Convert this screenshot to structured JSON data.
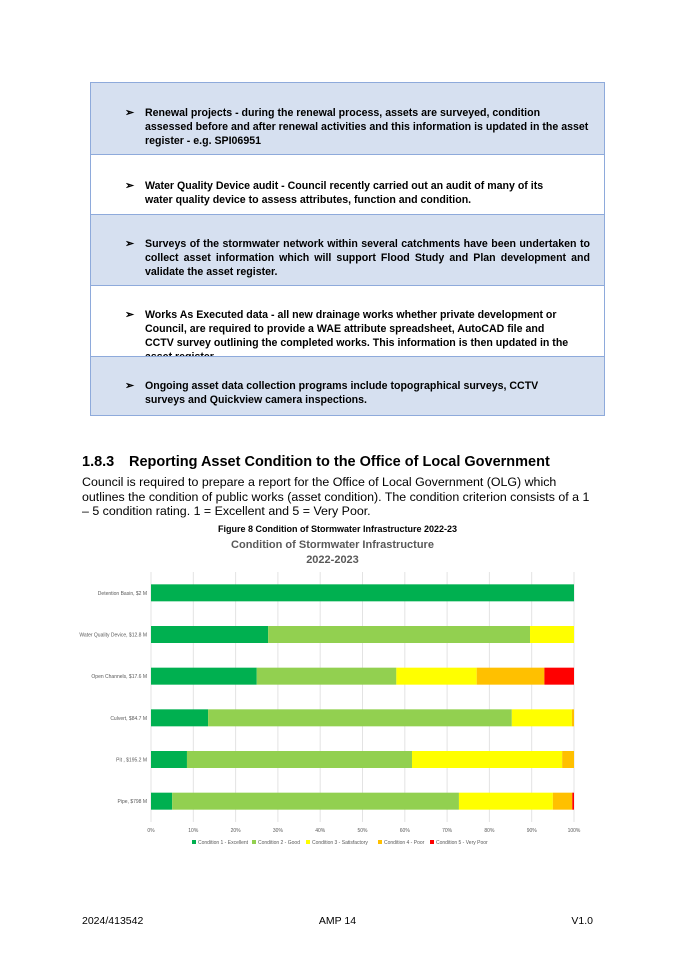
{
  "table": {
    "rows": [
      {
        "bullet": "➢",
        "text": "Renewal projects - during the renewal process, assets are surveyed, condition assessed before and after renewal activities and this information is updated in the asset register - e.g. SPI06951"
      },
      {
        "bullet": "➢",
        "text": "Water Quality Device audit - Council recently carried out an audit of many of its water quality device to assess attributes, function and condition."
      },
      {
        "bullet": "➢",
        "text": "Surveys of the stormwater network within several catchments have been undertaken to collect asset information which will support Flood Study and Plan development and validate the asset register."
      },
      {
        "bullet": "➢",
        "text": "Works As Executed data - all new drainage works whether private development or Council, are required to provide a WAE attribute spreadsheet, AutoCAD file and CCTV survey outlining the completed works. This information is then updated in the asset register."
      },
      {
        "bullet": "➢",
        "text": "Ongoing asset data collection programs include topographical surveys, CCTV surveys and Quickview camera inspections."
      }
    ]
  },
  "section": {
    "number": "1.8.3",
    "title": "Reporting Asset Condition to the Office of Local Government",
    "paragraph": "Council is required to prepare a report for the Office of Local Government (OLG) which outlines the condition of public works (asset condition). The condition criterion consists of a 1 – 5 condition rating. 1 = Excellent and 5 = Very Poor."
  },
  "figure_caption": "Figure 8 Condition of Stormwater Infrastructure 2022-23",
  "chart_data": {
    "type": "bar",
    "orientation": "horizontal-stacked-100",
    "title": "Condition of Stormwater Infrastructure",
    "subtitle": "2022-2023",
    "categories": [
      "Detention Basin, $2 M",
      "Water Quality Device, $12.8 M",
      "Open Channels, $17.6 M",
      "Culvert, $84.7 M",
      "Pit , $195.2 M",
      "Pipe, $798 M"
    ],
    "x_ticks": [
      "0%",
      "10%",
      "20%",
      "30%",
      "40%",
      "50%",
      "60%",
      "70%",
      "80%",
      "90%",
      "100%"
    ],
    "xlim": [
      0,
      100
    ],
    "grid": true,
    "legend_position": "bottom",
    "series": [
      {
        "name": "Condition 1 - Excellent",
        "color": "#00b050",
        "values": [
          100,
          27.7,
          25,
          13.5,
          8.5,
          5
        ]
      },
      {
        "name": "Condition 2 - Good",
        "color": "#92d050",
        "values": [
          0,
          61.9,
          33,
          71.8,
          53.2,
          67.8
        ]
      },
      {
        "name": "Condition 3 - Satisfactory",
        "color": "#ffff00",
        "values": [
          0,
          10.4,
          19,
          14.2,
          35.5,
          22.2
        ]
      },
      {
        "name": "Condition 4 - Poor",
        "color": "#ffc000",
        "values": [
          0,
          0,
          16,
          0.5,
          2.8,
          4.6
        ]
      },
      {
        "name": "Condition 5 - Very Poor",
        "color": "#ff0000",
        "values": [
          0,
          0,
          7,
          0,
          0,
          0.4
        ]
      }
    ]
  },
  "footer": {
    "left": "2024/413542",
    "center": "AMP 14",
    "right": "V1.0"
  }
}
